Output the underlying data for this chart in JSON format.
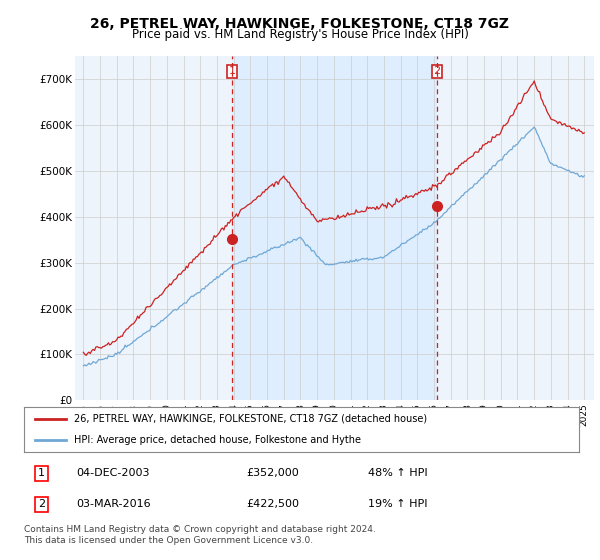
{
  "title": "26, PETREL WAY, HAWKINGE, FOLKESTONE, CT18 7GZ",
  "subtitle": "Price paid vs. HM Land Registry's House Price Index (HPI)",
  "hpi_color": "#6fa8d6",
  "price_color": "#cc2222",
  "vline_color": "#cc2222",
  "shade_color": "#ddeeff",
  "background_color": "#ffffff",
  "plot_bg_color": "#eef4fb",
  "ylim": [
    0,
    750000
  ],
  "yticks": [
    0,
    100000,
    200000,
    300000,
    400000,
    500000,
    600000,
    700000
  ],
  "ytick_labels": [
    "£0",
    "£100K",
    "£200K",
    "£300K",
    "£400K",
    "£500K",
    "£600K",
    "£700K"
  ],
  "sale1_price": 352000,
  "sale2_price": 422500,
  "legend_line1": "26, PETREL WAY, HAWKINGE, FOLKESTONE, CT18 7GZ (detached house)",
  "legend_line2": "HPI: Average price, detached house, Folkestone and Hythe",
  "table_row1": [
    "1",
    "04-DEC-2003",
    "£352,000",
    "48% ↑ HPI"
  ],
  "table_row2": [
    "2",
    "03-MAR-2016",
    "£422,500",
    "19% ↑ HPI"
  ],
  "footer": "Contains HM Land Registry data © Crown copyright and database right 2024.\nThis data is licensed under the Open Government Licence v3.0.",
  "start_year": 1995,
  "end_year": 2025,
  "months_per_year": 12
}
